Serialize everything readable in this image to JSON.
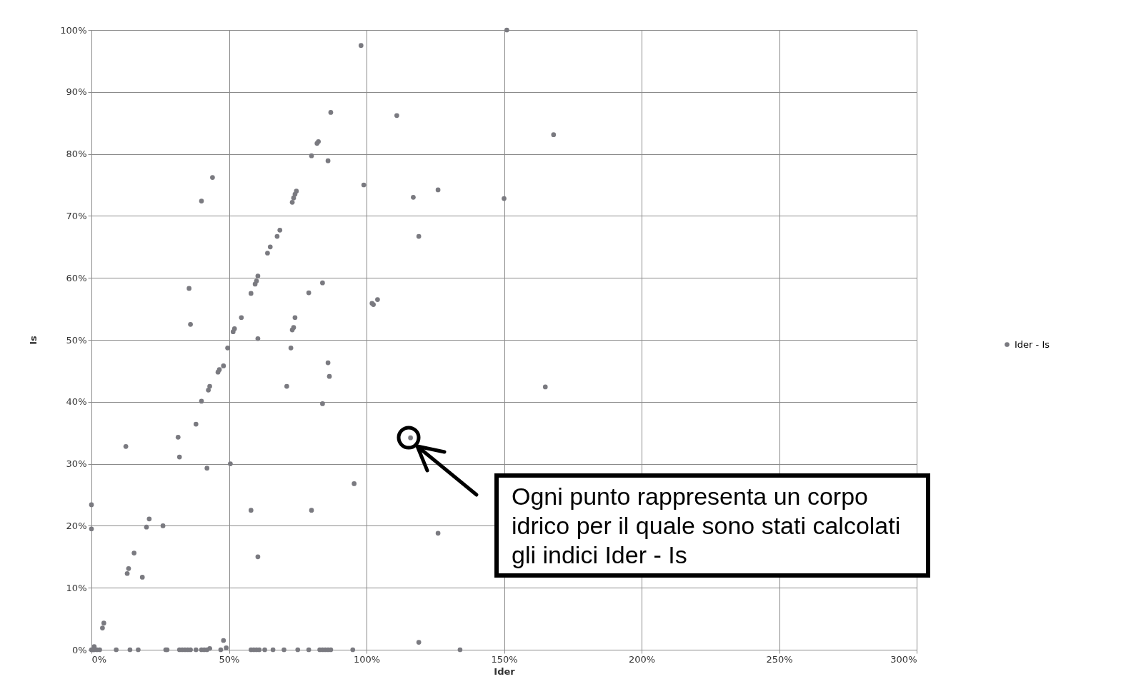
{
  "chart_data": {
    "type": "scatter",
    "xlabel": "Ider",
    "ylabel": "Is",
    "legend": "right",
    "grid": true,
    "marker": "circle",
    "xlim": [
      0,
      300
    ],
    "ylim": [
      0,
      100
    ],
    "xticks": [
      {
        "value": 0,
        "label": "0%"
      },
      {
        "value": 50,
        "label": "50%"
      },
      {
        "value": 100,
        "label": "100%"
      },
      {
        "value": 150,
        "label": "150%"
      },
      {
        "value": 200,
        "label": "200%"
      },
      {
        "value": 250,
        "label": "250%"
      },
      {
        "value": 300,
        "label": "300%"
      }
    ],
    "yticks": [
      {
        "value": 0,
        "label": "0%"
      },
      {
        "value": 10,
        "label": "10%"
      },
      {
        "value": 20,
        "label": "20%"
      },
      {
        "value": 30,
        "label": "30%"
      },
      {
        "value": 40,
        "label": "40%"
      },
      {
        "value": 50,
        "label": "50%"
      },
      {
        "value": 60,
        "label": "60%"
      },
      {
        "value": 70,
        "label": "70%"
      },
      {
        "value": 80,
        "label": "80%"
      },
      {
        "value": 90,
        "label": "90%"
      },
      {
        "value": 100,
        "label": "100%"
      }
    ],
    "annotations": [
      "Ogni punto rappresenta un corpo idrico per il quale sono stati calcolati gli indici Ider - Is"
    ],
    "series": [
      {
        "name": "Ider - Is",
        "color": "#7a7a80",
        "x": [
          151,
          98,
          87,
          111,
          168,
          82.5,
          82,
          80,
          86,
          44,
          40,
          99,
          117,
          126,
          150,
          74.5,
          74,
          73.5,
          73,
          119,
          68.5,
          67.5,
          65,
          64,
          35.5,
          60.5,
          60,
          59.5,
          58,
          84,
          79,
          104,
          102,
          102.5,
          54.5,
          52,
          51.5,
          74,
          73.5,
          73,
          36,
          60.5,
          49.5,
          72.5,
          48,
          46.5,
          46,
          86,
          86.5,
          43,
          42.5,
          40,
          84,
          71,
          165,
          38,
          31.5,
          116,
          12.5,
          32,
          42,
          50.5,
          95.5,
          0,
          58,
          80,
          126,
          0,
          21,
          20,
          26,
          15.5,
          60.5,
          13.5,
          13,
          18.5,
          4.5,
          4,
          48,
          119,
          1,
          0,
          0.5,
          1,
          2,
          3,
          9,
          14,
          17,
          27,
          27.5,
          32,
          33,
          34,
          35,
          36,
          38,
          40,
          41,
          42,
          43,
          47,
          49,
          58,
          59,
          60,
          61,
          63,
          66,
          70,
          75,
          79,
          83,
          84,
          85,
          86,
          87,
          95,
          134
        ],
        "values": [
          100,
          97.5,
          86.7,
          86.2,
          83.1,
          82,
          81.7,
          79.7,
          78.9,
          76.2,
          72.4,
          75,
          73,
          74.2,
          72.8,
          74,
          73.5,
          72.9,
          72.2,
          66.7,
          67.7,
          66.7,
          65,
          64,
          58.3,
          60.3,
          59.5,
          59,
          57.5,
          59.2,
          57.6,
          56.5,
          55.9,
          55.7,
          53.6,
          51.8,
          51.3,
          53.6,
          52,
          51.6,
          52.5,
          50.2,
          48.7,
          48.7,
          45.8,
          45.2,
          44.8,
          46.3,
          44.1,
          42.5,
          41.9,
          40.1,
          39.7,
          42.5,
          42.4,
          36.4,
          34.3,
          34.2,
          32.8,
          31.1,
          29.3,
          30,
          26.8,
          23.4,
          22.5,
          22.5,
          18.8,
          19.5,
          21.1,
          19.8,
          20,
          15.6,
          15,
          13.1,
          12.3,
          11.7,
          4.3,
          3.5,
          1.5,
          1.2,
          0.5,
          0,
          0,
          0,
          0,
          0,
          0,
          0,
          0,
          0,
          0,
          0,
          0,
          0,
          0,
          0,
          0,
          0,
          0,
          0,
          0.2,
          0,
          0.3,
          0,
          0,
          0,
          0,
          0,
          0,
          0,
          0,
          0,
          0,
          0,
          0,
          0,
          0,
          0,
          0
        ]
      }
    ]
  }
}
